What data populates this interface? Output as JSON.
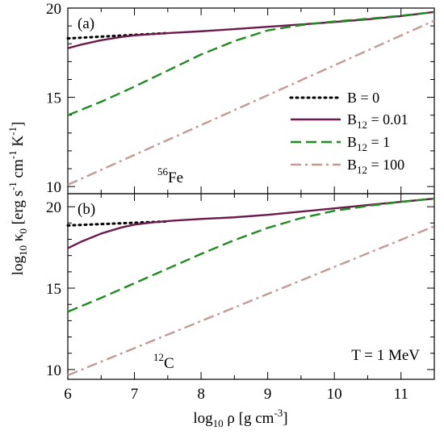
{
  "chart_data": {
    "type": "line",
    "xlabel": {
      "main": "log",
      "sub": "10",
      "rest": " ρ [g cm",
      "sup": "-3",
      "tail": "]"
    },
    "ylabel": {
      "main": "log",
      "sub": "10",
      "kappa": " κ",
      "ksub": "0",
      "p1": " [erg  s",
      "s1": "-1",
      "p2": " cm",
      "s2": "-1",
      "p3": " K",
      "s3": "-1",
      "p4": "]"
    },
    "xlim": [
      6,
      11.5
    ],
    "xticks": [
      6,
      7,
      8,
      9,
      10,
      11
    ],
    "xtick_labels": [
      "6",
      "7",
      "8",
      "9",
      "10",
      "11"
    ],
    "legend": {
      "placement": "right",
      "entries": [
        {
          "main": "B = 0",
          "sub": "",
          "rest": "",
          "style": "dotted",
          "color": "#000000"
        },
        {
          "main": "B",
          "sub": "12",
          "rest": " = 0.01",
          "style": "solid",
          "color": "#6b1a4b"
        },
        {
          "main": "B",
          "sub": "12",
          "rest": " = 1",
          "style": "dashed",
          "color": "#1e8c1e"
        },
        {
          "main": "B",
          "sub": "12",
          "rest": " = 100",
          "style": "dashdot",
          "color": "#c49a94"
        }
      ]
    },
    "panels": [
      {
        "tag": "(a)",
        "element": {
          "sup": "56",
          "sym": "Fe"
        },
        "ylim": [
          9.6,
          20
        ],
        "yticks": [
          10,
          15,
          20
        ],
        "ytick_labels": [
          "10",
          "15",
          "20"
        ],
        "series": [
          {
            "style": "dotted",
            "x": [
              6.0,
              7.5
            ],
            "y": [
              18.3,
              18.6
            ]
          },
          {
            "style": "solid",
            "x": [
              6.0,
              6.2,
              6.5,
              6.8,
              7.0,
              7.3,
              7.6,
              8.0,
              8.5,
              9.0,
              9.5,
              10.0,
              10.5,
              11.0,
              11.5
            ],
            "y": [
              17.75,
              17.95,
              18.2,
              18.38,
              18.47,
              18.55,
              18.62,
              18.7,
              18.82,
              18.95,
              19.08,
              19.22,
              19.37,
              19.55,
              19.78
            ]
          },
          {
            "style": "dashed",
            "x": [
              6.0,
              6.5,
              7.0,
              7.5,
              8.0,
              8.5,
              9.0,
              9.5,
              10.0,
              10.5,
              11.0,
              11.5
            ],
            "y": [
              14.0,
              14.75,
              15.6,
              16.5,
              17.4,
              18.15,
              18.75,
              19.05,
              19.25,
              19.4,
              19.57,
              19.78
            ]
          },
          {
            "style": "dashdot",
            "x": [
              6.0,
              11.5
            ],
            "y": [
              10.1,
              19.3
            ]
          }
        ]
      },
      {
        "tag": "(b)",
        "element": {
          "sup": "12",
          "sym": "C"
        },
        "ylim": [
          9.4,
          20.8
        ],
        "yticks": [
          10,
          15,
          20
        ],
        "ytick_labels": [
          "10",
          "15",
          "20"
        ],
        "annotation": "T = 1 MeV",
        "series": [
          {
            "style": "dotted",
            "x": [
              6.0,
              7.5
            ],
            "y": [
              18.85,
              19.1
            ]
          },
          {
            "style": "solid",
            "x": [
              6.0,
              6.2,
              6.5,
              6.8,
              7.0,
              7.3,
              7.6,
              8.0,
              8.5,
              9.0,
              9.5,
              10.0,
              10.5,
              11.0,
              11.5
            ],
            "y": [
              17.45,
              17.85,
              18.35,
              18.72,
              18.9,
              19.05,
              19.15,
              19.25,
              19.35,
              19.5,
              19.7,
              19.9,
              20.1,
              20.3,
              20.5
            ]
          },
          {
            "style": "dashed",
            "x": [
              6.0,
              6.5,
              7.0,
              7.5,
              8.0,
              8.5,
              9.0,
              9.5,
              10.0,
              10.5,
              11.0,
              11.5
            ],
            "y": [
              13.55,
              14.4,
              15.3,
              16.2,
              17.1,
              17.95,
              18.7,
              19.3,
              19.75,
              20.05,
              20.3,
              20.5
            ]
          },
          {
            "style": "dashdot",
            "x": [
              6.0,
              11.5
            ],
            "y": [
              9.65,
              18.8
            ]
          }
        ]
      }
    ]
  }
}
